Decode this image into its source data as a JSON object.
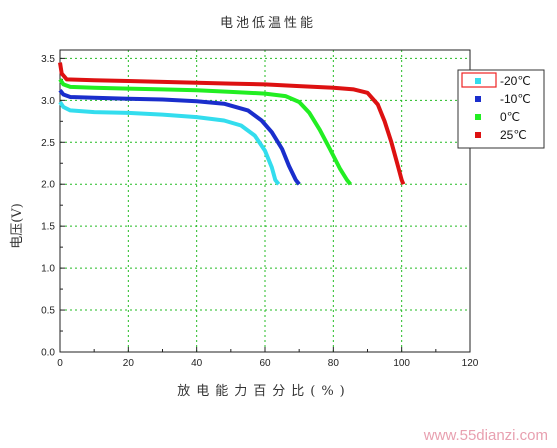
{
  "chart_data": {
    "type": "line",
    "title": "电池低温性能",
    "xlabel": "放电能力百分比(%)",
    "ylabel": "电压(V)",
    "xlim": [
      0,
      120
    ],
    "ylim": [
      0,
      3.6
    ],
    "x_ticks": [
      "0",
      "20",
      "40",
      "60",
      "80",
      "100",
      "120"
    ],
    "y_ticks": [
      "0.0",
      "0.5",
      "1.0",
      "1.5",
      "2.0",
      "2.5",
      "3.0",
      "3.5"
    ],
    "grid": true,
    "legend_position": "top-right",
    "series": [
      {
        "name": "-20℃",
        "color": "#33ddee",
        "points": [
          [
            0,
            2.98
          ],
          [
            1,
            2.92
          ],
          [
            3,
            2.88
          ],
          [
            10,
            2.86
          ],
          [
            20,
            2.85
          ],
          [
            30,
            2.83
          ],
          [
            40,
            2.8
          ],
          [
            48,
            2.76
          ],
          [
            53,
            2.7
          ],
          [
            57,
            2.58
          ],
          [
            60,
            2.4
          ],
          [
            62,
            2.2
          ],
          [
            63,
            2.05
          ],
          [
            64,
            2.0
          ]
        ]
      },
      {
        "name": "-10℃",
        "color": "#1a2ecc",
        "points": [
          [
            0,
            3.12
          ],
          [
            1,
            3.07
          ],
          [
            3,
            3.04
          ],
          [
            10,
            3.03
          ],
          [
            20,
            3.02
          ],
          [
            30,
            3.01
          ],
          [
            40,
            2.99
          ],
          [
            48,
            2.96
          ],
          [
            55,
            2.88
          ],
          [
            59,
            2.76
          ],
          [
            62,
            2.62
          ],
          [
            65,
            2.42
          ],
          [
            67,
            2.22
          ],
          [
            69,
            2.05
          ],
          [
            70,
            2.0
          ]
        ]
      },
      {
        "name": "0℃",
        "color": "#22ee22",
        "points": [
          [
            0,
            3.25
          ],
          [
            1,
            3.19
          ],
          [
            3,
            3.16
          ],
          [
            10,
            3.15
          ],
          [
            20,
            3.14
          ],
          [
            30,
            3.13
          ],
          [
            40,
            3.12
          ],
          [
            50,
            3.1
          ],
          [
            60,
            3.08
          ],
          [
            66,
            3.05
          ],
          [
            70,
            2.98
          ],
          [
            73,
            2.85
          ],
          [
            76,
            2.65
          ],
          [
            79,
            2.42
          ],
          [
            82,
            2.18
          ],
          [
            84,
            2.05
          ],
          [
            85,
            2.0
          ]
        ]
      },
      {
        "name": "25℃",
        "color": "#dd1111",
        "points": [
          [
            0,
            3.45
          ],
          [
            0.5,
            3.32
          ],
          [
            2,
            3.25
          ],
          [
            10,
            3.24
          ],
          [
            20,
            3.23
          ],
          [
            30,
            3.22
          ],
          [
            40,
            3.21
          ],
          [
            50,
            3.2
          ],
          [
            60,
            3.19
          ],
          [
            70,
            3.17
          ],
          [
            80,
            3.15
          ],
          [
            86,
            3.13
          ],
          [
            90,
            3.09
          ],
          [
            93,
            2.95
          ],
          [
            95,
            2.75
          ],
          [
            97,
            2.5
          ],
          [
            99,
            2.2
          ],
          [
            100,
            2.05
          ],
          [
            100.5,
            2.0
          ]
        ]
      }
    ]
  },
  "watermark": "www.55dianzi.com"
}
